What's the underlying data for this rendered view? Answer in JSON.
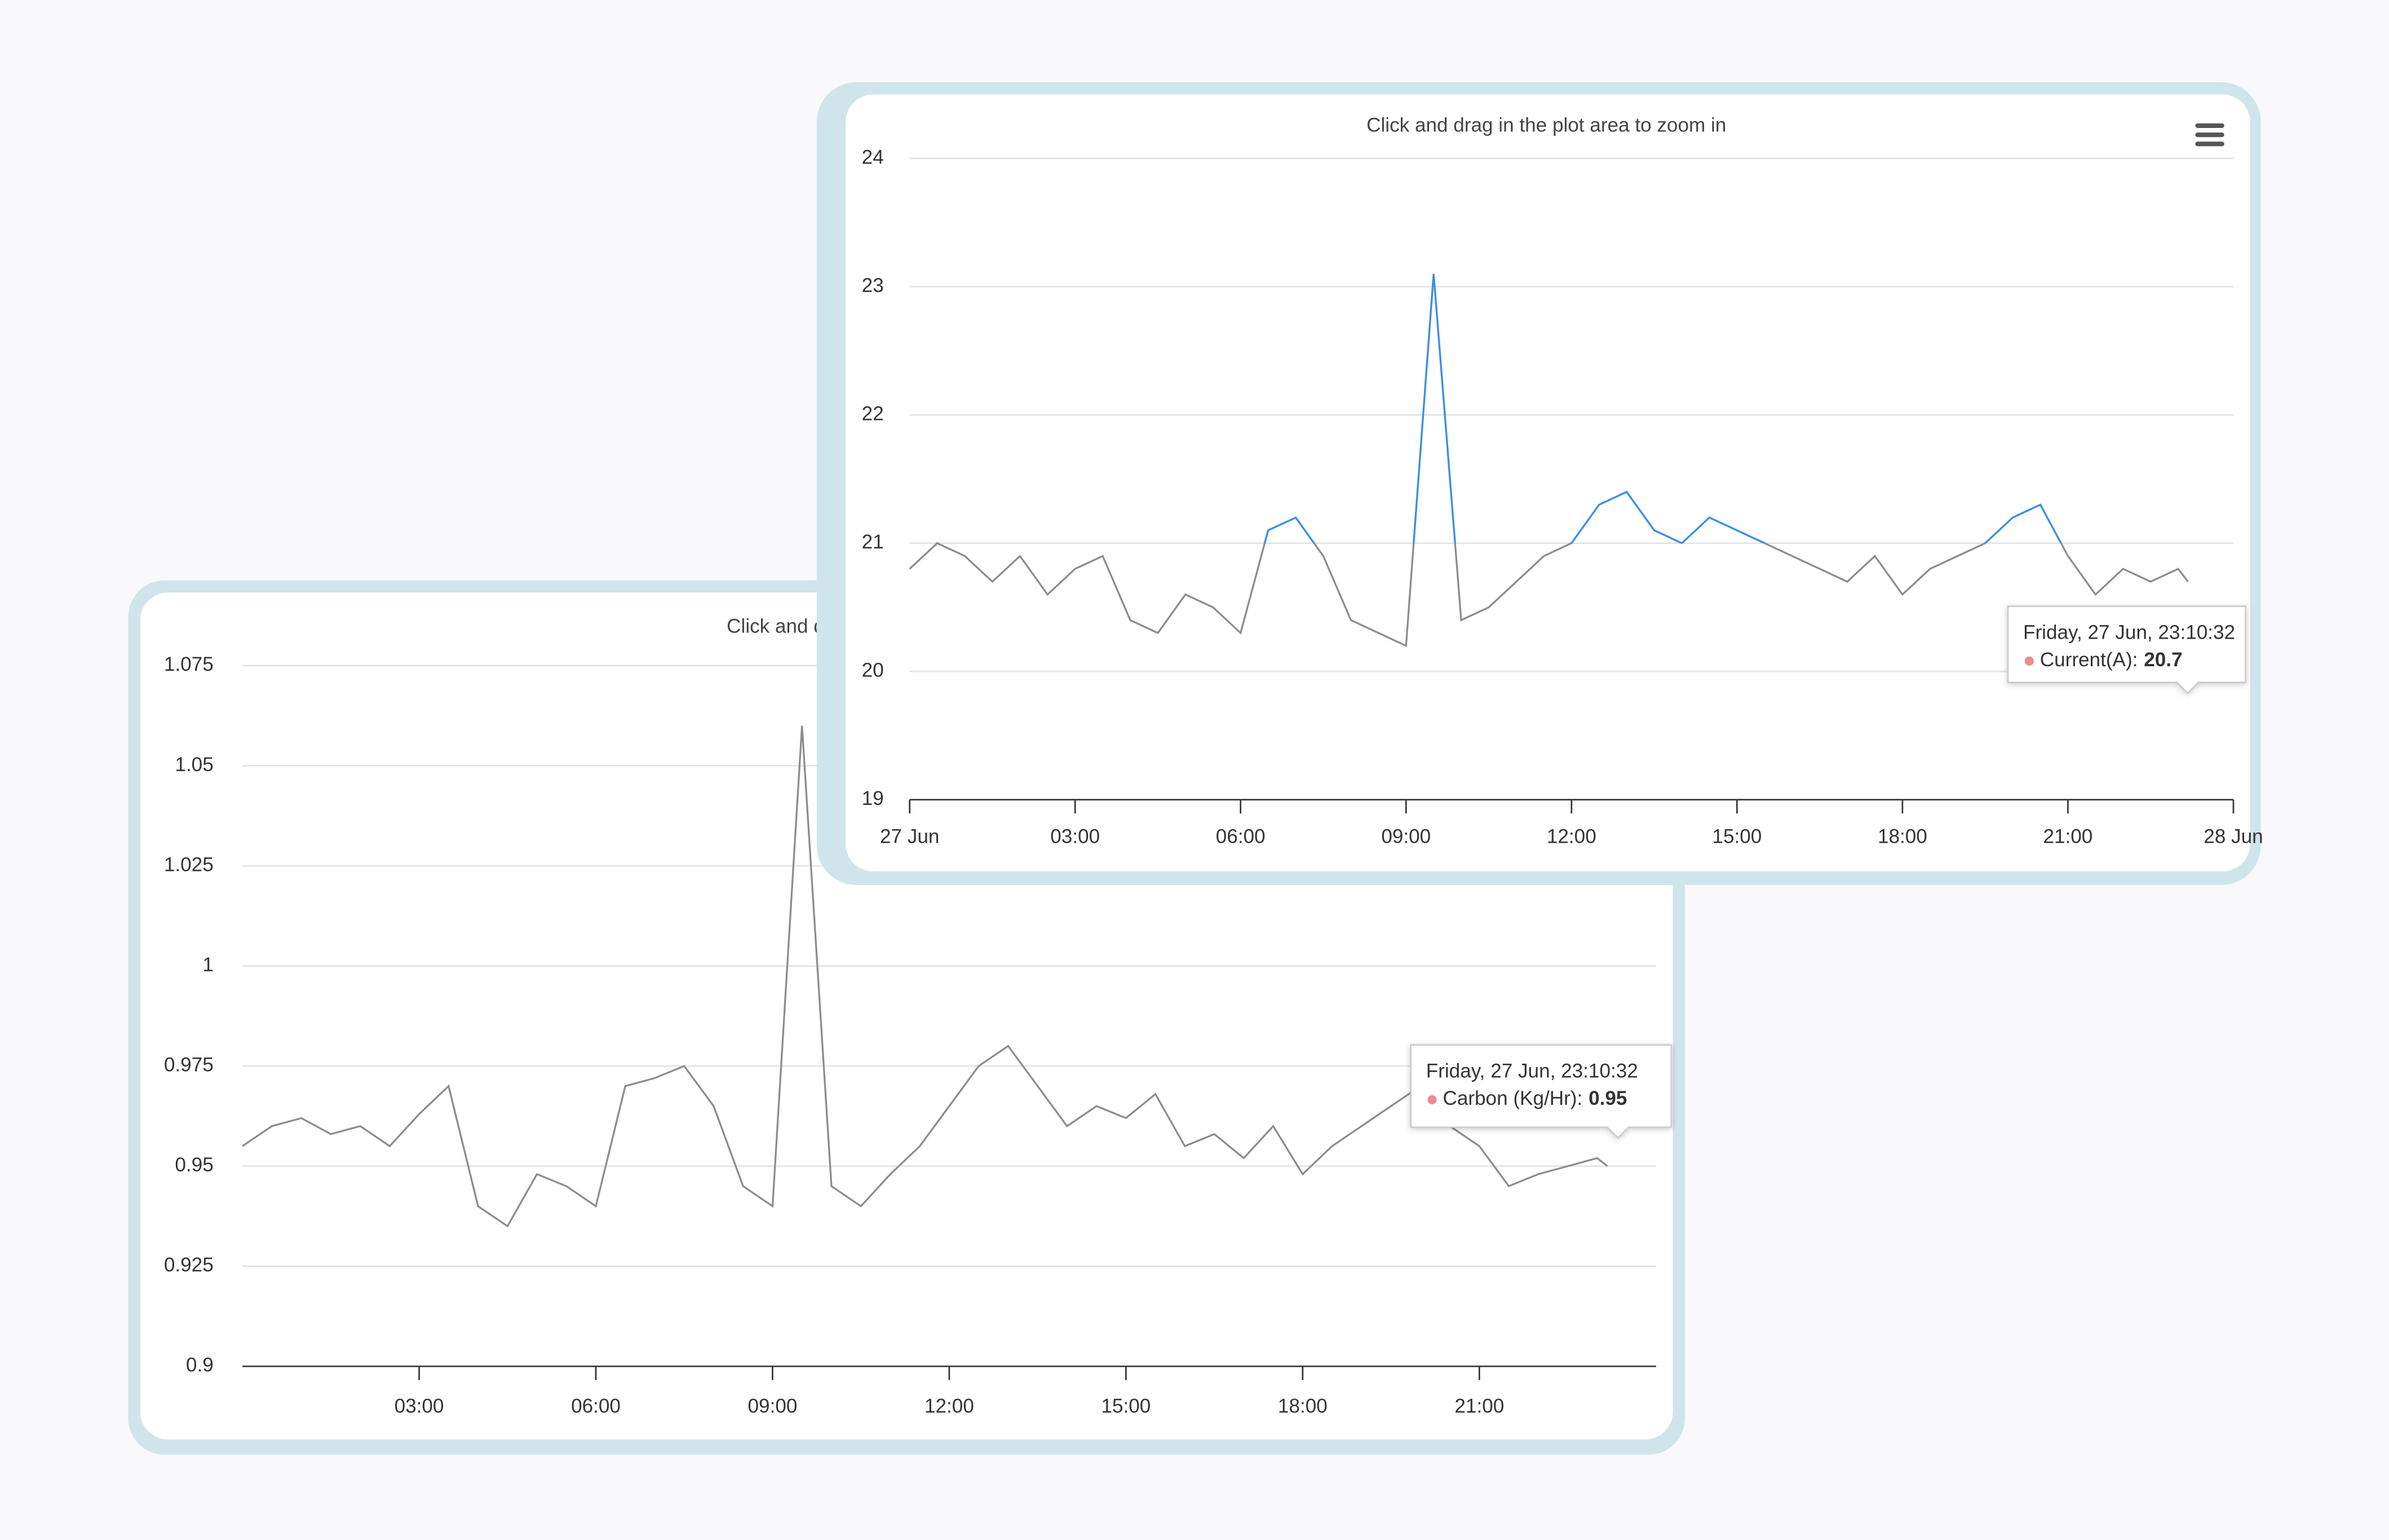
{
  "chart_data": [
    {
      "type": "line",
      "title": "Click and drag in the plot area to zoom in",
      "x": [
        0,
        0.5,
        1,
        1.5,
        2,
        2.5,
        3,
        3.5,
        4,
        4.5,
        5,
        5.5,
        6,
        6.5,
        7,
        7.5,
        8,
        8.5,
        9,
        9.5,
        10,
        10.5,
        11,
        11.5,
        12,
        12.5,
        13,
        13.5,
        14,
        14.5,
        15,
        15.5,
        16,
        16.5,
        17,
        17.5,
        18,
        18.5,
        19,
        19.5,
        20,
        20.5,
        21,
        21.5,
        22,
        22.5,
        23,
        23.1756
      ],
      "values": [
        0.955,
        0.96,
        0.962,
        0.958,
        0.96,
        0.955,
        0.963,
        0.97,
        0.94,
        0.935,
        0.948,
        0.945,
        0.94,
        0.97,
        0.972,
        0.975,
        0.965,
        0.945,
        0.94,
        1.06,
        0.945,
        0.94,
        0.948,
        0.955,
        0.965,
        0.975,
        0.98,
        0.97,
        0.96,
        0.965,
        0.962,
        0.968,
        0.955,
        0.958,
        0.952,
        0.96,
        0.948,
        0.955,
        0.96,
        0.965,
        0.97,
        0.96,
        0.955,
        0.945,
        0.948,
        0.95,
        0.952,
        0.95
      ],
      "color": "#8c8c8c",
      "xlim": [
        0,
        24
      ],
      "xticks": [
        {
          "value": 3,
          "label": "03:00"
        },
        {
          "value": 6,
          "label": "06:00"
        },
        {
          "value": 9,
          "label": "09:00"
        },
        {
          "value": 12,
          "label": "12:00"
        },
        {
          "value": 15,
          "label": "15:00"
        },
        {
          "value": 18,
          "label": "18:00"
        },
        {
          "value": 21,
          "label": "21:00"
        }
      ],
      "ylim": [
        0.9,
        1.075
      ],
      "yticks": [
        0.9,
        0.925,
        0.95,
        0.975,
        1,
        1.025,
        1.05,
        1.075
      ],
      "grid": true,
      "tooltip": {
        "header": "Friday, 27 Jun, 23:10:32",
        "label": "Carbon (Kg/Hr):"
      }
    },
    {
      "type": "line",
      "title": "Click and drag in the plot area to zoom in",
      "x": [
        0,
        0.5,
        1,
        1.5,
        2,
        2.5,
        3,
        3.5,
        4,
        4.5,
        5,
        5.5,
        6,
        6.5,
        7,
        7.5,
        8,
        8.5,
        9,
        9.5,
        10,
        10.5,
        11,
        11.5,
        12,
        12.5,
        13,
        13.5,
        14,
        14.5,
        15,
        15.5,
        16,
        16.5,
        17,
        17.5,
        18,
        18.5,
        19,
        19.5,
        20,
        20.5,
        21,
        21.5,
        22,
        22.5,
        23,
        23.1756
      ],
      "values": [
        20.8,
        21.0,
        20.9,
        20.7,
        20.9,
        20.6,
        20.8,
        20.9,
        20.4,
        20.3,
        20.6,
        20.5,
        20.3,
        21.1,
        21.2,
        20.9,
        20.4,
        20.3,
        20.2,
        23.1,
        20.4,
        20.5,
        20.7,
        20.9,
        21.0,
        21.3,
        21.4,
        21.1,
        21.0,
        21.2,
        21.1,
        21.0,
        20.9,
        20.8,
        20.7,
        20.9,
        20.6,
        20.8,
        20.9,
        21.0,
        21.2,
        21.3,
        20.9,
        20.6,
        20.8,
        20.7,
        20.8,
        20.7
      ],
      "color": "#8c8c8c",
      "zone": {
        "threshold": 21,
        "color_above": "#3b8fe6"
      },
      "xlim": [
        0,
        24
      ],
      "xticks": [
        {
          "value": 0,
          "label": "27 Jun"
        },
        {
          "value": 3,
          "label": "03:00"
        },
        {
          "value": 6,
          "label": "06:00"
        },
        {
          "value": 9,
          "label": "09:00"
        },
        {
          "value": 12,
          "label": "12:00"
        },
        {
          "value": 15,
          "label": "15:00"
        },
        {
          "value": 18,
          "label": "18:00"
        },
        {
          "value": 21,
          "label": "21:00"
        },
        {
          "value": 24,
          "label": "28 Jun"
        }
      ],
      "ylim": [
        19,
        24
      ],
      "yticks": [
        19,
        20,
        21,
        22,
        23,
        24
      ],
      "grid": true,
      "tooltip": {
        "header": "Friday, 27 Jun, 23:10:32",
        "label": "Current(A):"
      }
    }
  ]
}
